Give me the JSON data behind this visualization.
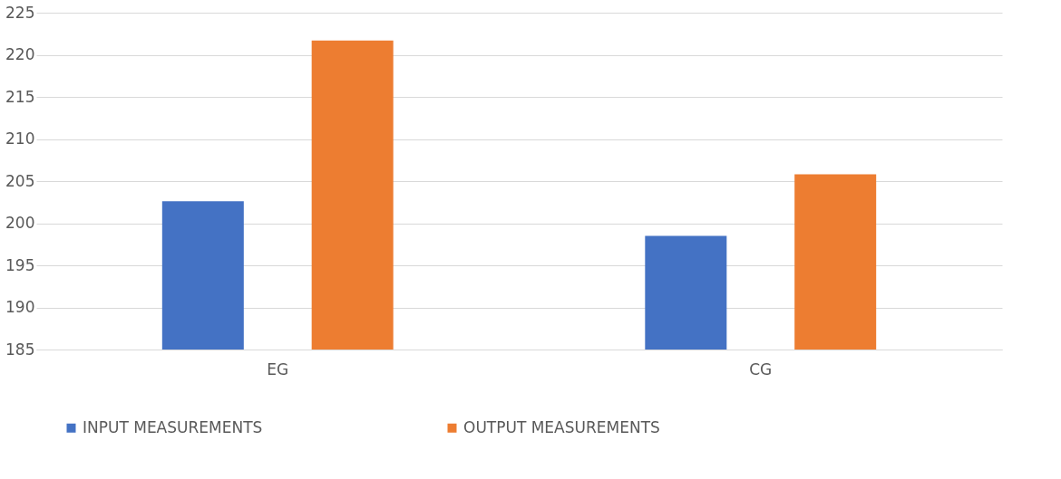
{
  "chart_data": {
    "type": "bar",
    "categories": [
      "EG",
      "CG"
    ],
    "series": [
      {
        "name": "INPUT MEASUREMENTS",
        "color": "#4472c4",
        "values": [
          202.6,
          198.5
        ]
      },
      {
        "name": "OUTPUT MEASUREMENTS",
        "color": "#ed7d31",
        "values": [
          221.7,
          205.8
        ]
      }
    ],
    "ylim": [
      185,
      225
    ],
    "yticks": [
      185,
      190,
      195,
      200,
      205,
      210,
      215,
      220,
      225
    ],
    "grid": "y",
    "legend": "bottom"
  }
}
